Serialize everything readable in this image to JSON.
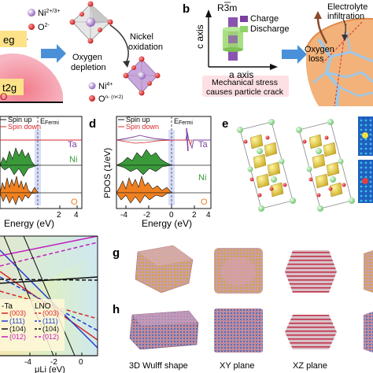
{
  "panels": {
    "a": {
      "legend_ni": "Ni",
      "legend_ni_sup": "2+/3+",
      "legend_o": "O",
      "legend_o_sup": "2-",
      "level_eg": "eg",
      "level_t2g": "t2g",
      "level_o": "O",
      "nickel_oxidation": [
        "Nickel",
        "oxidation"
      ],
      "oxygen_depletion": [
        "Oxygen",
        "depletion"
      ],
      "ni4": "Ni",
      "ni4_sup": "4+",
      "on": "O",
      "on_sup": "n- (n<2)"
    },
    "b": {
      "label": "b",
      "space_group": "R3m",
      "legend_charge": "Charge",
      "legend_discharge": "Discharge",
      "c_axis": "c axis",
      "a_axis": "a axis",
      "stress": [
        "Mechanical stress",
        "causes particle crack"
      ],
      "electrolyte": [
        "Electrolyte",
        "infiltration"
      ],
      "oxygen_loss": [
        "Oxygen",
        "loss"
      ]
    },
    "c": {
      "spin_up": "Spin up",
      "spin_down": "Spin down",
      "efermi": "E",
      "efermi_sub": "Fermi",
      "elements": [
        "Ta",
        "Ni",
        "O"
      ],
      "xlabel": "Energy (eV)",
      "xticks": [
        "2",
        "4"
      ]
    },
    "d": {
      "label": "d",
      "ylabel": "PDOS (1/eV)",
      "spin_up": "Spin up",
      "spin_down": "Spin down",
      "efermi": "E",
      "efermi_sub": "Fermi",
      "elements": [
        "Ta",
        "Ni",
        "O"
      ],
      "xlabel": "Energy (eV)",
      "xticks": [
        "-4",
        "-2",
        "0",
        "2",
        "4"
      ]
    },
    "e": {
      "label": "e"
    },
    "f": {
      "legend_title_left": "-Ta",
      "legend_title_right": "LNO",
      "rows_left": [
        "(003)",
        "(111)",
        "(104)",
        "(012)"
      ],
      "rows_right": [
        "(003)",
        "(111)",
        "(104)",
        "(012)"
      ],
      "xlabel": "μLi (eV)",
      "xticks": [
        "-4",
        "-2",
        "0"
      ]
    },
    "g": {
      "label": "g"
    },
    "h": {
      "label": "h",
      "caption_wulff": "3D Wulff shape",
      "caption_xy": "XY plane",
      "caption_xz": "XZ plane"
    }
  },
  "colors": {
    "arrow_blue": "#4a90d9",
    "spin_up": "#111111",
    "spin_down": "#d9262b",
    "ta": "#7b3fa0",
    "ni": "#3a9a3a",
    "o": "#f08020",
    "fermi": "#3a5bd9",
    "charge": "#7b3fa0",
    "discharge": "#8fd26a"
  }
}
